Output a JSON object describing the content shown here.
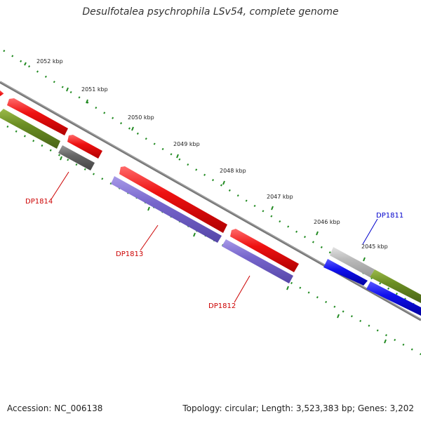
{
  "title": "Desulfotalea psychrophila LSv54, complete genome",
  "footer": {
    "accession": "Accession: NC_006138",
    "summary": "Topology: circular; Length: 3,523,383 bp; Genes: 3,202"
  },
  "colors": {
    "forward_cds": "#ee1111",
    "hypothetical": "#666666",
    "green_feature": "#6b8e23",
    "purple_feature": "#7766cc",
    "blue_feature": "#1111ee",
    "light_gray_feature": "#bbbbbb",
    "backbone": "#888888",
    "tick": "#228b22",
    "label_red": "#cc0000",
    "label_blue": "#0000cc"
  },
  "kbp_labels": [
    "2052 kbp",
    "2051 kbp",
    "2050 kbp",
    "2049 kbp",
    "2048 kbp",
    "2047 kbp",
    "2046 kbp",
    "2045 kbp"
  ],
  "gene_labels": [
    {
      "name": "DP1814",
      "color": "red"
    },
    {
      "name": "DP1813",
      "color": "red"
    },
    {
      "name": "DP1812",
      "color": "red"
    },
    {
      "name": "DP1811",
      "color": "blue"
    }
  ]
}
